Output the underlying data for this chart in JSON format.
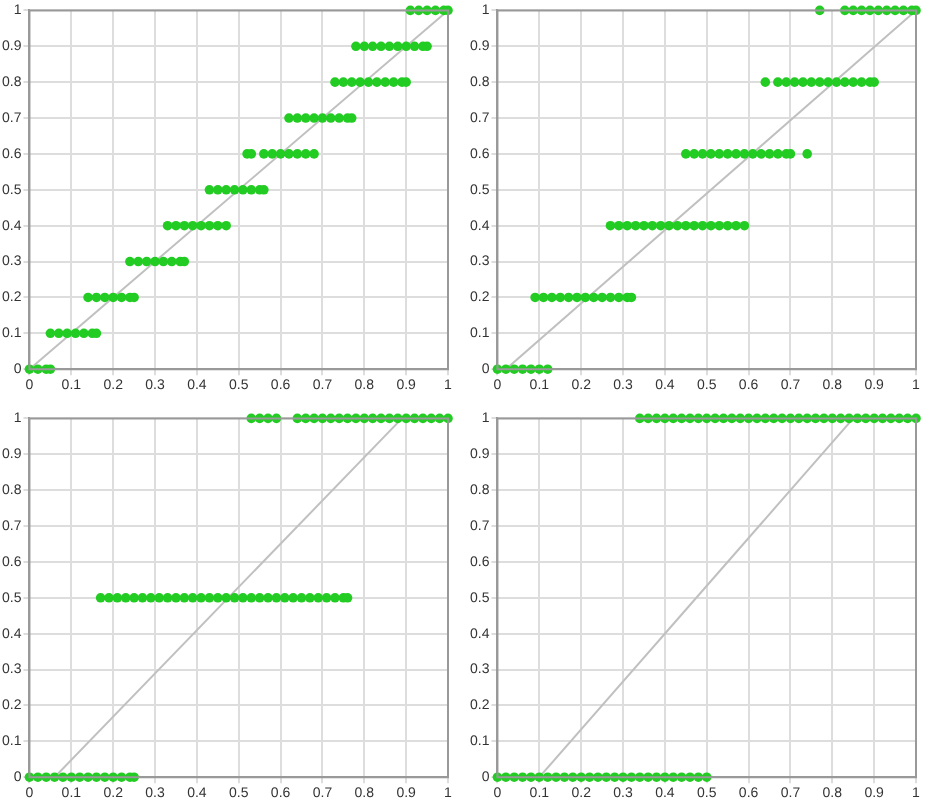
{
  "chart_data": [
    {
      "type": "scatter",
      "xlim": [
        0,
        1
      ],
      "ylim": [
        0,
        1
      ],
      "xticks": [
        0,
        0.1,
        0.2,
        0.3,
        0.4,
        0.5,
        0.6,
        0.7,
        0.8,
        0.9,
        1
      ],
      "yticks": [
        0,
        0.1,
        0.2,
        0.3,
        0.4,
        0.5,
        0.6,
        0.7,
        0.8,
        0.9,
        1
      ],
      "grid": true,
      "legend": false,
      "marker": "circle",
      "series": [
        {
          "type": "line",
          "color": "#c0c0c0",
          "marker": "none",
          "x": [
            0,
            1
          ],
          "values": [
            0,
            1
          ]
        },
        {
          "color": "#22cc22",
          "x": [
            0,
            0.02,
            0.04,
            0.05,
            0.05,
            0.07,
            0.09,
            0.11,
            0.13,
            0.15,
            0.16,
            0.14,
            0.16,
            0.18,
            0.2,
            0.22,
            0.24,
            0.25,
            0.24,
            0.26,
            0.28,
            0.3,
            0.32,
            0.34,
            0.36,
            0.37,
            0.33,
            0.35,
            0.37,
            0.39,
            0.41,
            0.43,
            0.45,
            0.47,
            0.43,
            0.45,
            0.47,
            0.49,
            0.51,
            0.53,
            0.55,
            0.56,
            0.52,
            0.53,
            0.56,
            0.58,
            0.6,
            0.62,
            0.64,
            0.66,
            0.68,
            0.62,
            0.64,
            0.66,
            0.68,
            0.7,
            0.72,
            0.74,
            0.76,
            0.77,
            0.73,
            0.75,
            0.77,
            0.79,
            0.81,
            0.83,
            0.85,
            0.87,
            0.89,
            0.9,
            0.78,
            0.8,
            0.82,
            0.84,
            0.86,
            0.88,
            0.9,
            0.92,
            0.94,
            0.95,
            0.91,
            0.93,
            0.95,
            0.97,
            0.99,
            1
          ],
          "values": [
            0,
            0,
            0,
            0,
            0.1,
            0.1,
            0.1,
            0.1,
            0.1,
            0.1,
            0.1,
            0.2,
            0.2,
            0.2,
            0.2,
            0.2,
            0.2,
            0.2,
            0.3,
            0.3,
            0.3,
            0.3,
            0.3,
            0.3,
            0.3,
            0.3,
            0.4,
            0.4,
            0.4,
            0.4,
            0.4,
            0.4,
            0.4,
            0.4,
            0.5,
            0.5,
            0.5,
            0.5,
            0.5,
            0.5,
            0.5,
            0.5,
            0.6,
            0.6,
            0.6,
            0.6,
            0.6,
            0.6,
            0.6,
            0.6,
            0.6,
            0.7,
            0.7,
            0.7,
            0.7,
            0.7,
            0.7,
            0.7,
            0.7,
            0.7,
            0.8,
            0.8,
            0.8,
            0.8,
            0.8,
            0.8,
            0.8,
            0.8,
            0.8,
            0.8,
            0.9,
            0.9,
            0.9,
            0.9,
            0.9,
            0.9,
            0.9,
            0.9,
            0.9,
            0.9,
            1,
            1,
            1,
            1,
            1,
            1
          ]
        }
      ]
    },
    {
      "type": "scatter",
      "xlim": [
        0,
        1
      ],
      "ylim": [
        0,
        1
      ],
      "xticks": [
        0,
        0.1,
        0.2,
        0.3,
        0.4,
        0.5,
        0.6,
        0.7,
        0.8,
        0.9,
        1
      ],
      "yticks": [
        0,
        0.1,
        0.2,
        0.3,
        0.4,
        0.5,
        0.6,
        0.7,
        0.8,
        0.9,
        1
      ],
      "grid": true,
      "legend": false,
      "marker": "circle",
      "series": [
        {
          "type": "line",
          "color": "#c0c0c0",
          "marker": "none",
          "x": [
            0.02,
            1
          ],
          "values": [
            0,
            1
          ]
        },
        {
          "color": "#22cc22",
          "x": [
            0,
            0.02,
            0.04,
            0.06,
            0.08,
            0.1,
            0.12,
            0.09,
            0.11,
            0.13,
            0.15,
            0.17,
            0.19,
            0.21,
            0.23,
            0.25,
            0.27,
            0.29,
            0.31,
            0.32,
            0.27,
            0.29,
            0.31,
            0.33,
            0.35,
            0.37,
            0.39,
            0.41,
            0.43,
            0.45,
            0.47,
            0.49,
            0.51,
            0.53,
            0.55,
            0.57,
            0.59,
            0.45,
            0.47,
            0.49,
            0.51,
            0.53,
            0.55,
            0.57,
            0.59,
            0.61,
            0.63,
            0.65,
            0.67,
            0.69,
            0.7,
            0.74,
            0.64,
            0.67,
            0.69,
            0.71,
            0.73,
            0.75,
            0.77,
            0.79,
            0.81,
            0.83,
            0.85,
            0.87,
            0.89,
            0.9,
            0.77,
            0.83,
            0.85,
            0.87,
            0.89,
            0.91,
            0.93,
            0.95,
            0.97,
            0.99,
            1
          ],
          "values": [
            0,
            0,
            0,
            0,
            0,
            0,
            0,
            0.2,
            0.2,
            0.2,
            0.2,
            0.2,
            0.2,
            0.2,
            0.2,
            0.2,
            0.2,
            0.2,
            0.2,
            0.2,
            0.4,
            0.4,
            0.4,
            0.4,
            0.4,
            0.4,
            0.4,
            0.4,
            0.4,
            0.4,
            0.4,
            0.4,
            0.4,
            0.4,
            0.4,
            0.4,
            0.4,
            0.6,
            0.6,
            0.6,
            0.6,
            0.6,
            0.6,
            0.6,
            0.6,
            0.6,
            0.6,
            0.6,
            0.6,
            0.6,
            0.6,
            0.6,
            0.8,
            0.8,
            0.8,
            0.8,
            0.8,
            0.8,
            0.8,
            0.8,
            0.8,
            0.8,
            0.8,
            0.8,
            0.8,
            0.8,
            1,
            1,
            1,
            1,
            1,
            1,
            1,
            1,
            1,
            1,
            1
          ]
        }
      ]
    },
    {
      "type": "scatter",
      "xlim": [
        0,
        1
      ],
      "ylim": [
        0,
        1
      ],
      "xticks": [
        0,
        0.1,
        0.2,
        0.3,
        0.4,
        0.5,
        0.6,
        0.7,
        0.8,
        0.9,
        1
      ],
      "yticks": [
        0,
        0.1,
        0.2,
        0.3,
        0.4,
        0.5,
        0.6,
        0.7,
        0.8,
        0.9,
        1
      ],
      "grid": true,
      "legend": false,
      "marker": "circle",
      "series": [
        {
          "type": "line",
          "color": "#c0c0c0",
          "marker": "none",
          "x": [
            0.06,
            0.89
          ],
          "values": [
            0,
            1
          ]
        },
        {
          "color": "#22cc22",
          "x": [
            0,
            0.02,
            0.04,
            0.06,
            0.08,
            0.1,
            0.12,
            0.14,
            0.16,
            0.18,
            0.2,
            0.22,
            0.24,
            0.25,
            0.17,
            0.19,
            0.21,
            0.23,
            0.25,
            0.27,
            0.29,
            0.31,
            0.33,
            0.35,
            0.37,
            0.39,
            0.41,
            0.43,
            0.45,
            0.47,
            0.49,
            0.51,
            0.53,
            0.55,
            0.57,
            0.59,
            0.61,
            0.63,
            0.65,
            0.67,
            0.69,
            0.71,
            0.73,
            0.75,
            0.76,
            0.53,
            0.55,
            0.57,
            0.59,
            0.64,
            0.66,
            0.68,
            0.7,
            0.72,
            0.74,
            0.76,
            0.78,
            0.8,
            0.82,
            0.84,
            0.86,
            0.88,
            0.9,
            0.92,
            0.94,
            0.96,
            0.98,
            1
          ],
          "values": [
            0,
            0,
            0,
            0,
            0,
            0,
            0,
            0,
            0,
            0,
            0,
            0,
            0,
            0,
            0.5,
            0.5,
            0.5,
            0.5,
            0.5,
            0.5,
            0.5,
            0.5,
            0.5,
            0.5,
            0.5,
            0.5,
            0.5,
            0.5,
            0.5,
            0.5,
            0.5,
            0.5,
            0.5,
            0.5,
            0.5,
            0.5,
            0.5,
            0.5,
            0.5,
            0.5,
            0.5,
            0.5,
            0.5,
            0.5,
            0.5,
            1,
            1,
            1,
            1,
            1,
            1,
            1,
            1,
            1,
            1,
            1,
            1,
            1,
            1,
            1,
            1,
            1,
            1,
            1,
            1,
            1,
            1,
            1
          ]
        }
      ]
    },
    {
      "type": "scatter",
      "xlim": [
        0,
        1
      ],
      "ylim": [
        0,
        1
      ],
      "xticks": [
        0,
        0.1,
        0.2,
        0.3,
        0.4,
        0.5,
        0.6,
        0.7,
        0.8,
        0.9,
        1
      ],
      "yticks": [
        0,
        0.1,
        0.2,
        0.3,
        0.4,
        0.5,
        0.6,
        0.7,
        0.8,
        0.9,
        1
      ],
      "grid": true,
      "legend": false,
      "marker": "circle",
      "series": [
        {
          "type": "line",
          "color": "#c0c0c0",
          "marker": "none",
          "x": [
            0.1,
            0.85
          ],
          "values": [
            0,
            1
          ]
        },
        {
          "color": "#22cc22",
          "x": [
            0,
            0.02,
            0.04,
            0.06,
            0.08,
            0.1,
            0.12,
            0.14,
            0.16,
            0.18,
            0.2,
            0.22,
            0.24,
            0.26,
            0.28,
            0.3,
            0.32,
            0.34,
            0.36,
            0.38,
            0.4,
            0.42,
            0.44,
            0.46,
            0.48,
            0.5,
            0.34,
            0.36,
            0.38,
            0.4,
            0.42,
            0.44,
            0.46,
            0.48,
            0.5,
            0.52,
            0.54,
            0.56,
            0.58,
            0.6,
            0.62,
            0.64,
            0.66,
            0.68,
            0.7,
            0.72,
            0.74,
            0.76,
            0.78,
            0.8,
            0.82,
            0.84,
            0.86,
            0.88,
            0.9,
            0.92,
            0.94,
            0.96,
            0.98,
            1
          ],
          "values": [
            0,
            0,
            0,
            0,
            0,
            0,
            0,
            0,
            0,
            0,
            0,
            0,
            0,
            0,
            0,
            0,
            0,
            0,
            0,
            0,
            0,
            0,
            0,
            0,
            0,
            0,
            1,
            1,
            1,
            1,
            1,
            1,
            1,
            1,
            1,
            1,
            1,
            1,
            1,
            1,
            1,
            1,
            1,
            1,
            1,
            1,
            1,
            1,
            1,
            1,
            1,
            1,
            1,
            1,
            1,
            1,
            1,
            1,
            1,
            1
          ]
        }
      ]
    }
  ]
}
